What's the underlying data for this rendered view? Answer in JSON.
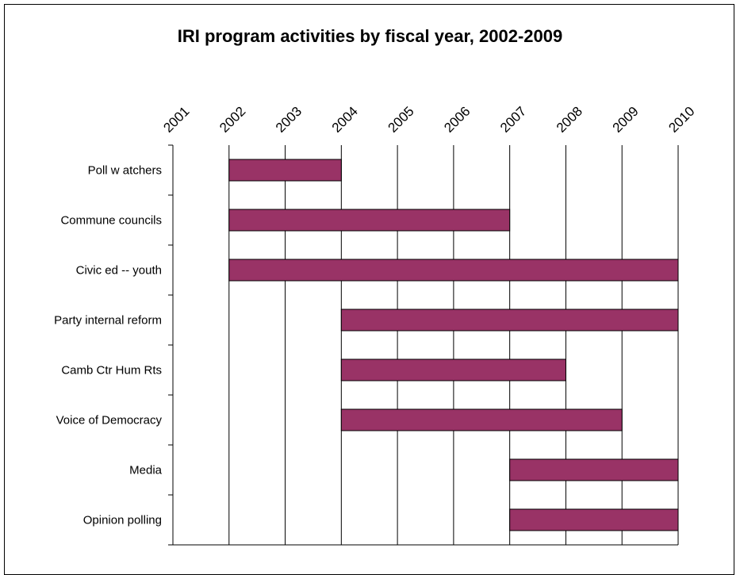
{
  "chart_data": {
    "type": "bar",
    "orientation": "horizontal-range",
    "title": "IRI program activities by fiscal year, 2002-2009",
    "xlabel": "",
    "ylabel": "",
    "x_ticks": [
      "2001",
      "2002",
      "2003",
      "2004",
      "2005",
      "2006",
      "2007",
      "2008",
      "2009",
      "2010"
    ],
    "xlim": [
      2001,
      2010
    ],
    "grid": "vertical",
    "legend": "none",
    "bar_color": "#993366",
    "categories": [
      "Poll w atchers",
      "Commune councils",
      "Civic ed -- youth",
      "Party internal reform",
      "Camb Ctr Hum Rts",
      "Voice of Democracy",
      "Media",
      "Opinion polling"
    ],
    "series": [
      {
        "ranges": [
          [
            2002,
            2004
          ],
          [
            2002,
            2007
          ],
          [
            2002,
            2010
          ],
          [
            2004,
            2010
          ],
          [
            2004,
            2008
          ],
          [
            2004,
            2009
          ],
          [
            2007,
            2010
          ],
          [
            2007,
            2010
          ]
        ]
      }
    ]
  }
}
